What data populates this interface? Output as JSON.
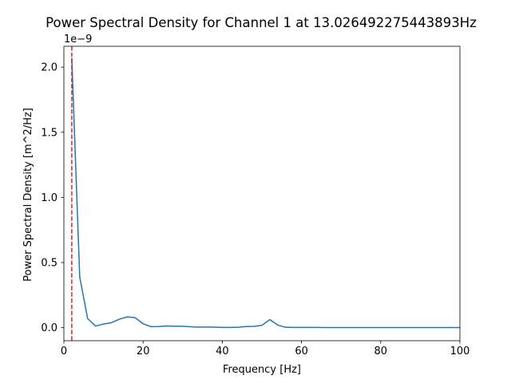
{
  "chart_data": {
    "type": "line",
    "title": "Power Spectral Density for Channel 1 at 13.026492275443893Hz",
    "xlabel": "Frequency [Hz]",
    "ylabel": "Power Spectral Density [m^2/Hz]",
    "y_offset_label": "1e−9",
    "xlim": [
      0,
      100
    ],
    "ylim": [
      -0.1,
      2.16
    ],
    "x_ticks": [
      0,
      20,
      40,
      60,
      80,
      100
    ],
    "x_tick_labels": [
      "0",
      "20",
      "40",
      "60",
      "80",
      "100"
    ],
    "y_ticks": [
      0.0,
      0.5,
      1.0,
      1.5,
      2.0
    ],
    "y_tick_labels": [
      "0.0",
      "0.5",
      "1.0",
      "1.5",
      "2.0"
    ],
    "grid": false,
    "series": [
      {
        "color": "#1f77b4",
        "x": [
          2,
          4,
          6,
          8,
          10,
          12,
          14,
          16,
          18,
          20,
          22,
          24,
          26,
          28,
          30,
          32,
          34,
          36,
          38,
          40,
          42,
          44,
          46,
          48,
          50,
          52,
          54,
          56,
          58,
          60,
          62,
          64,
          66,
          68,
          70,
          72,
          74,
          76,
          78,
          80,
          82,
          84,
          86,
          88,
          90,
          92,
          94,
          96,
          98,
          100
        ],
        "y": [
          2.07,
          0.39,
          0.07,
          0.012,
          0.028,
          0.038,
          0.065,
          0.083,
          0.077,
          0.03,
          0.008,
          0.009,
          0.013,
          0.011,
          0.011,
          0.007,
          0.004,
          0.005,
          0.004,
          0.002,
          0.002,
          0.003,
          0.009,
          0.01,
          0.018,
          0.062,
          0.02,
          0.003,
          0.002,
          0.002,
          0.002,
          0.002,
          0.001,
          0.001,
          0.001,
          0.001,
          0.001,
          0.001,
          0.001,
          0.001,
          0.001,
          0.001,
          0.001,
          0.001,
          0.001,
          0.001,
          0.001,
          0.001,
          0.001,
          0.001
        ]
      }
    ],
    "vlines": [
      {
        "x": 2,
        "color": "#d62728",
        "style": "dashed"
      }
    ]
  }
}
